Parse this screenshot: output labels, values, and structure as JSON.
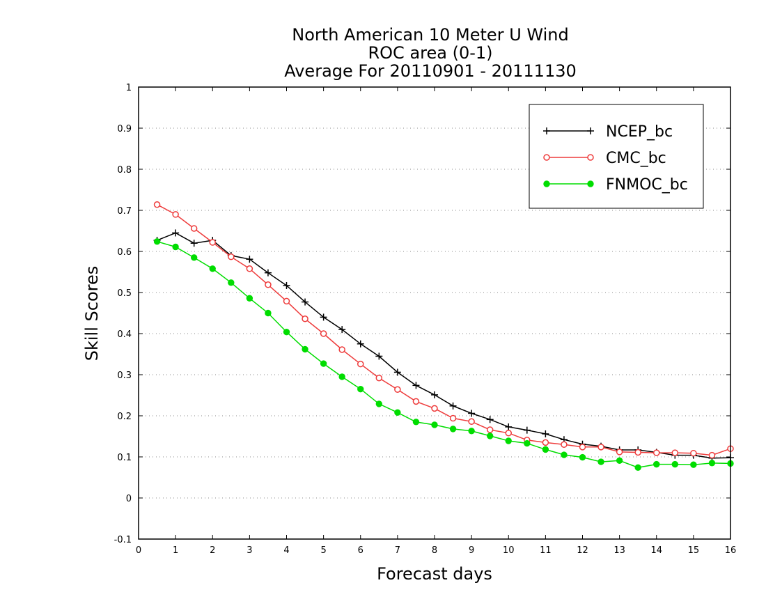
{
  "chart_data": {
    "type": "line",
    "title": [
      "North American 10 Meter U Wind",
      "ROC area (0-1)",
      "Average For 20110901 - 20111130"
    ],
    "xlabel": "Forecast days",
    "ylabel": "Skill Scores",
    "xlim": [
      0,
      16
    ],
    "ylim": [
      -0.1,
      1
    ],
    "xticks": [
      "0",
      "1",
      "2",
      "3",
      "4",
      "5",
      "6",
      "7",
      "8",
      "9",
      "10",
      "11",
      "12",
      "13",
      "14",
      "15",
      "16"
    ],
    "yticks": [
      "-0.1",
      "0",
      "0.1",
      "0.2",
      "0.3",
      "0.4",
      "0.5",
      "0.6",
      "0.7",
      "0.8",
      "0.9",
      "1"
    ],
    "grid": "horizontal dotted",
    "legend_position": "top-right",
    "x": [
      0.5,
      1,
      1.5,
      2,
      2.5,
      3,
      3.5,
      4,
      4.5,
      5,
      5.5,
      6,
      6.5,
      7,
      7.5,
      8,
      8.5,
      9,
      9.5,
      10,
      10.5,
      11,
      11.5,
      12,
      12.5,
      13,
      13.5,
      14,
      14.5,
      15,
      15.5,
      16
    ],
    "series": [
      {
        "name": "NCEP_bc",
        "color": "#000000",
        "marker": "plus",
        "values": [
          0.627,
          0.645,
          0.62,
          0.627,
          0.59,
          0.581,
          0.548,
          0.517,
          0.477,
          0.44,
          0.41,
          0.375,
          0.345,
          0.306,
          0.274,
          0.251,
          0.224,
          0.206,
          0.191,
          0.173,
          0.165,
          0.156,
          0.142,
          0.131,
          0.126,
          0.117,
          0.117,
          0.111,
          0.104,
          0.104,
          0.097,
          0.098
        ]
      },
      {
        "name": "CMC_bc",
        "color": "#ee3b3b",
        "marker": "open-circle",
        "values": [
          0.714,
          0.69,
          0.656,
          0.622,
          0.587,
          0.558,
          0.519,
          0.479,
          0.436,
          0.4,
          0.361,
          0.326,
          0.292,
          0.264,
          0.235,
          0.218,
          0.194,
          0.186,
          0.166,
          0.158,
          0.141,
          0.135,
          0.13,
          0.124,
          0.124,
          0.112,
          0.111,
          0.11,
          0.11,
          0.109,
          0.104,
          0.12
        ]
      },
      {
        "name": "FNMOC_bc",
        "color": "#00dd00",
        "marker": "filled-circle",
        "values": [
          0.624,
          0.611,
          0.585,
          0.558,
          0.524,
          0.486,
          0.45,
          0.404,
          0.362,
          0.327,
          0.295,
          0.265,
          0.229,
          0.208,
          0.185,
          0.178,
          0.168,
          0.163,
          0.151,
          0.139,
          0.133,
          0.118,
          0.105,
          0.099,
          0.088,
          0.091,
          0.074,
          0.082,
          0.082,
          0.081,
          0.085,
          0.084
        ]
      }
    ]
  }
}
